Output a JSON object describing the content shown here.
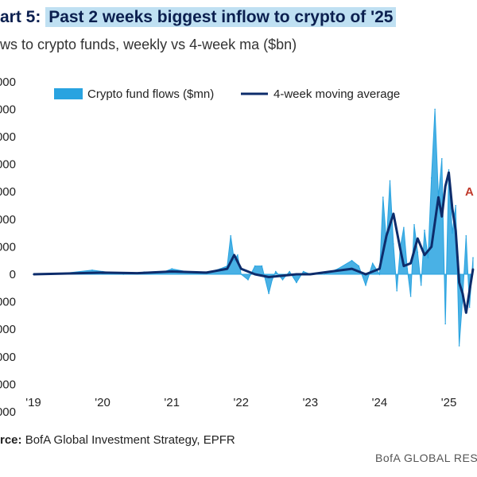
{
  "title_prefix": "art 5: ",
  "title_main": "Past 2 weeks biggest inflow to crypto of '25",
  "subtitle": "ws to crypto funds, weekly vs 4-week ma ($bn)",
  "source_label": "rce:",
  "source_text": " BofA Global Investment Strategy, EPFR",
  "brand": "BofA GLOBAL RESE",
  "annotation": "A",
  "colors": {
    "flows": "#29a3e0",
    "ma": "#0d2c6b",
    "annotation": "#c0392b"
  },
  "chart_data": {
    "type": "area",
    "ylim": [
      -4000,
      7000
    ],
    "y_tick_labels": [
      "000",
      "000",
      "000",
      "000",
      "000",
      "000",
      "000",
      "0",
      "000",
      "000",
      "000",
      "000",
      "000"
    ],
    "y_tick_values": [
      7000,
      6000,
      5000,
      4000,
      3000,
      2000,
      1000,
      0,
      -1000,
      -2000,
      -3000,
      -4000,
      -5000
    ],
    "x_tick_labels": [
      "'19",
      "'20",
      "'21",
      "'22",
      "'23",
      "'24",
      "'25"
    ],
    "x_tick_values": [
      2019,
      2020,
      2021,
      2022,
      2023,
      2024,
      2025
    ],
    "xlim": [
      2019,
      2025.35
    ],
    "series": [
      {
        "name": "Crypto fund flows ($mn)",
        "x": [
          2019.0,
          2019.5,
          2019.85,
          2020.0,
          2020.3,
          2020.6,
          2020.9,
          2021.0,
          2021.2,
          2021.5,
          2021.7,
          2021.8,
          2021.85,
          2021.9,
          2021.95,
          2022.0,
          2022.1,
          2022.2,
          2022.3,
          2022.4,
          2022.45,
          2022.5,
          2022.6,
          2022.7,
          2022.8,
          2022.9,
          2023.0,
          2023.2,
          2023.4,
          2023.6,
          2023.7,
          2023.8,
          2023.9,
          2024.0,
          2024.05,
          2024.1,
          2024.15,
          2024.2,
          2024.25,
          2024.3,
          2024.35,
          2024.4,
          2024.45,
          2024.5,
          2024.55,
          2024.6,
          2024.65,
          2024.7,
          2024.75,
          2024.8,
          2024.85,
          2024.9,
          2024.95,
          2025.0,
          2025.05,
          2025.1,
          2025.15,
          2025.2,
          2025.25,
          2025.3,
          2025.35
        ],
        "values": [
          0,
          50,
          150,
          100,
          0,
          80,
          100,
          200,
          100,
          50,
          200,
          300,
          1400,
          500,
          700,
          0,
          -200,
          300,
          300,
          -700,
          -200,
          100,
          -200,
          100,
          -300,
          100,
          0,
          0,
          200,
          500,
          300,
          -400,
          400,
          0,
          2800,
          1200,
          3400,
          1100,
          -600,
          1000,
          1700,
          200,
          -800,
          1800,
          800,
          -400,
          1600,
          600,
          3500,
          6000,
          2800,
          4200,
          -1800,
          3800,
          1500,
          2500,
          -2600,
          -900,
          1400,
          -1200,
          600
        ]
      },
      {
        "name": "4-week moving average",
        "x": [
          2019.0,
          2019.5,
          2020.0,
          2020.5,
          2021.0,
          2021.5,
          2021.8,
          2021.9,
          2022.0,
          2022.2,
          2022.4,
          2022.6,
          2022.8,
          2023.0,
          2023.3,
          2023.6,
          2023.8,
          2024.0,
          2024.1,
          2024.2,
          2024.3,
          2024.35,
          2024.45,
          2024.55,
          2024.65,
          2024.75,
          2024.85,
          2024.9,
          2024.95,
          2025.0,
          2025.05,
          2025.1,
          2025.15,
          2025.2,
          2025.25,
          2025.3,
          2025.35
        ],
        "values": [
          0,
          30,
          60,
          40,
          100,
          60,
          200,
          700,
          200,
          0,
          -100,
          -50,
          0,
          0,
          100,
          200,
          0,
          200,
          1400,
          2200,
          900,
          300,
          400,
          1300,
          700,
          1000,
          2800,
          2100,
          3200,
          3700,
          2400,
          1600,
          -300,
          -700,
          -1400,
          -600,
          200
        ]
      }
    ],
    "legend": "top-center"
  }
}
